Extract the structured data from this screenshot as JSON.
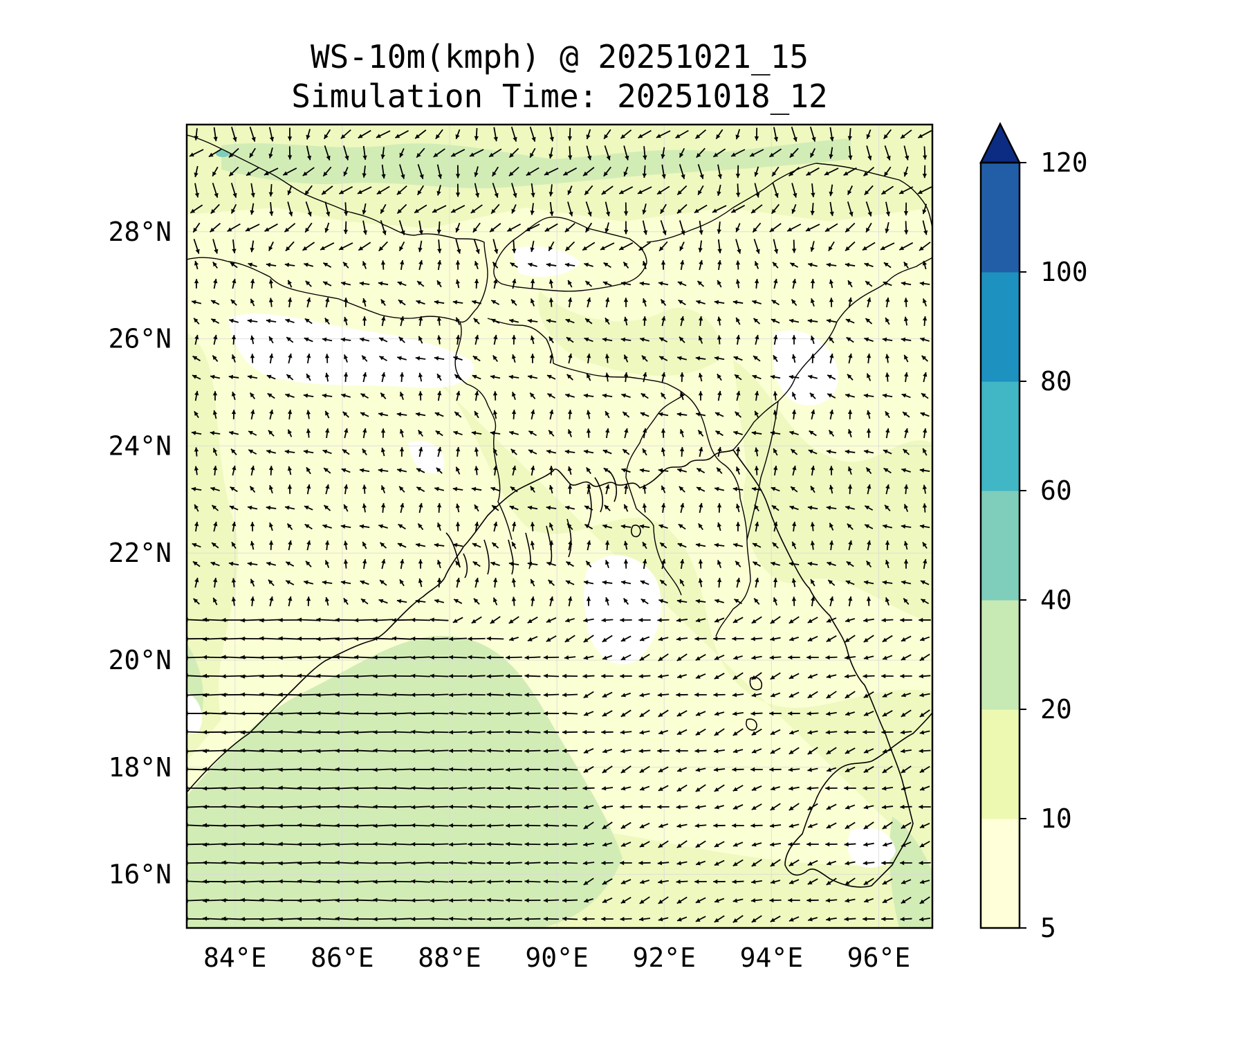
{
  "title": {
    "line1": "WS-10m(kmph) @ 20251021_15",
    "line2": "Simulation Time: 20251018_12"
  },
  "map": {
    "lon_range": [
      83.1,
      97.0
    ],
    "lat_range": [
      15.0,
      30.0
    ],
    "lon_ticks": [
      {
        "value": 84,
        "label": "84°E"
      },
      {
        "value": 86,
        "label": "86°E"
      },
      {
        "value": 88,
        "label": "88°E"
      },
      {
        "value": 90,
        "label": "90°E"
      },
      {
        "value": 92,
        "label": "92°E"
      },
      {
        "value": 94,
        "label": "94°E"
      },
      {
        "value": 96,
        "label": "96°E"
      }
    ],
    "lat_ticks": [
      {
        "value": 16,
        "label": "16°N"
      },
      {
        "value": 18,
        "label": "18°N"
      },
      {
        "value": 20,
        "label": "20°N"
      },
      {
        "value": 22,
        "label": "22°N"
      },
      {
        "value": 24,
        "label": "24°N"
      },
      {
        "value": 26,
        "label": "26°N"
      },
      {
        "value": 28,
        "label": "28°N"
      }
    ],
    "gridlines": true
  },
  "colorbar": {
    "levels": [
      5,
      10,
      20,
      40,
      60,
      80,
      100,
      120
    ],
    "labels": [
      "5",
      "10",
      "20",
      "40",
      "60",
      "80",
      "100",
      "120"
    ],
    "colors": [
      "#ffffd9",
      "#edf8b1",
      "#c7e9b4",
      "#7fcdbb",
      "#41b6c4",
      "#1d91c0",
      "#225ea8",
      "#0c2c84"
    ],
    "extend": "max"
  }
}
